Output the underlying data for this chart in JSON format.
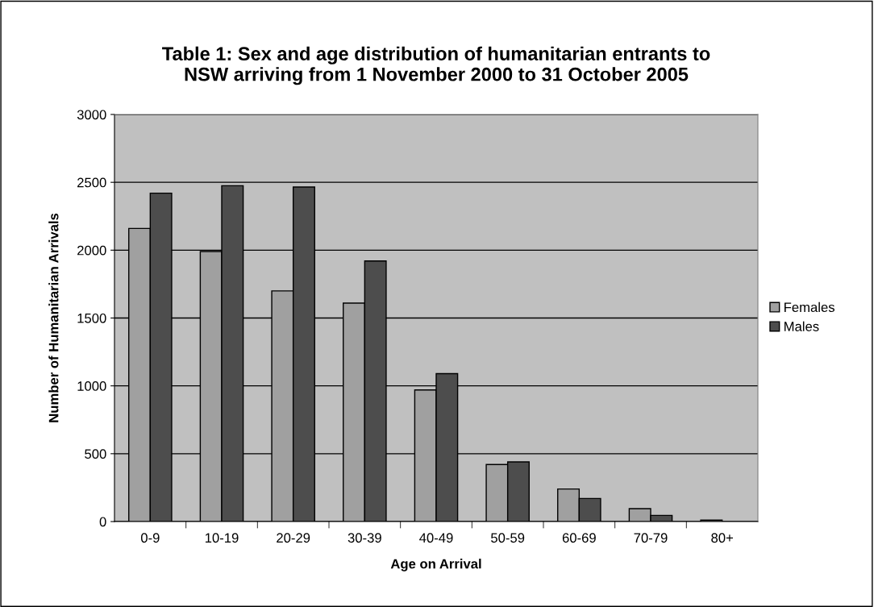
{
  "chart_data": {
    "type": "bar",
    "title": "Table 1: Sex and age distribution of humanitarian entrants to\nNSW arriving from 1 November 2000 to 31 October 2005",
    "xlabel": "Age on Arrival",
    "ylabel": "Number of Humanitarian Arrivals",
    "categories": [
      "0-9",
      "10-19",
      "20-29",
      "30-39",
      "40-49",
      "50-59",
      "60-69",
      "70-79",
      "80+"
    ],
    "series": [
      {
        "name": "Females",
        "color": "#a0a0a0",
        "values": [
          2160,
          1990,
          1700,
          1610,
          970,
          420,
          240,
          95,
          10
        ]
      },
      {
        "name": "Males",
        "color": "#4d4d4d",
        "values": [
          2420,
          2475,
          2465,
          1920,
          1090,
          440,
          170,
          45,
          null
        ]
      }
    ],
    "ylim": [
      0,
      3000
    ],
    "yticks": [
      0,
      500,
      1000,
      1500,
      2000,
      2500,
      3000
    ],
    "grid": "y",
    "legend": "right"
  }
}
